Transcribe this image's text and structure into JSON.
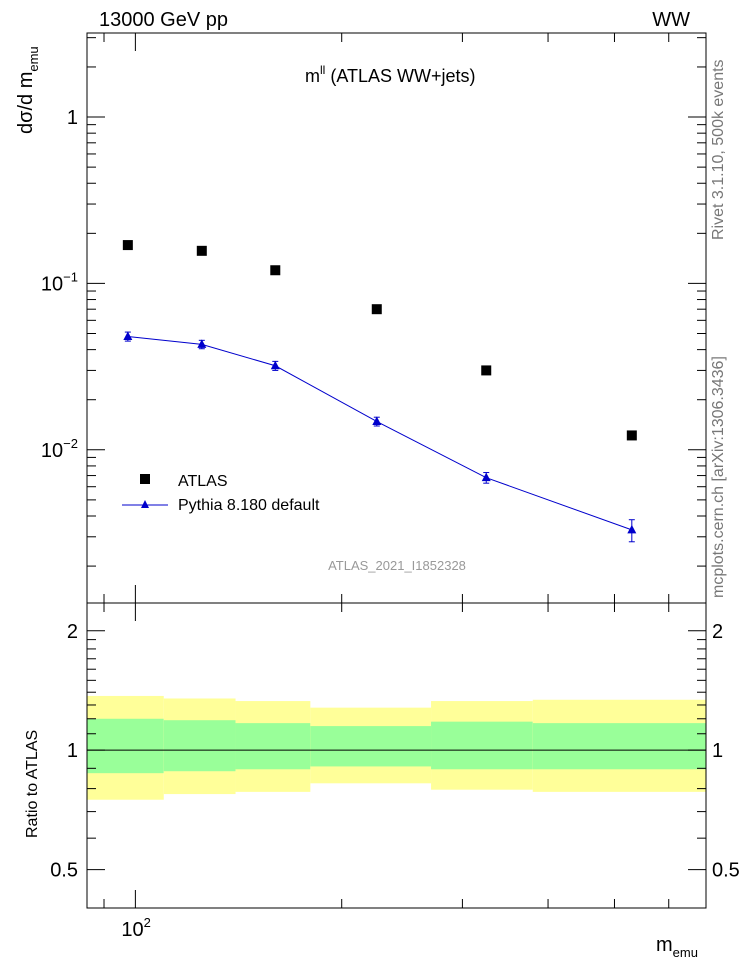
{
  "header": {
    "energy_label": "13000 GeV pp",
    "process_label": "WW"
  },
  "side_labels": {
    "rivet": "Rivet 3.1.10,  500k events",
    "mcplots": "mcplots.cern.ch [arXiv:1306.3436]"
  },
  "chart_data": {
    "type": "scatter",
    "title": "m^ll (ATLAS WW+jets)",
    "title_main": "m",
    "title_sup": "ll",
    "title_rest": " (ATLAS WW+jets)",
    "analysis_tag": "ATLAS_2021_I1852328",
    "ylabel_main": "dσ/d m",
    "ylabel_sub": "emu",
    "xlabel_main": "m",
    "xlabel_sub": "emu",
    "ratio_ylabel": "Ratio to ATLAS",
    "xscale": "log",
    "xlim": [
      85,
      680
    ],
    "ylim": [
      0.0012,
      3.2
    ],
    "ratio_ylim": [
      0.4,
      2.35
    ],
    "bin_edges": [
      85,
      110,
      140,
      180,
      270,
      380,
      680
    ],
    "main_y_ticks": [
      {
        "value": 0.01,
        "base": "10",
        "exp": "−2"
      },
      {
        "value": 0.1,
        "base": "10",
        "exp": "−1"
      },
      {
        "value": 1,
        "base": "1",
        "exp": ""
      }
    ],
    "x_ticks": [
      {
        "value": 100,
        "base": "10",
        "exp": "2"
      }
    ],
    "ratio_y_ticks": [
      {
        "value": 0.5,
        "label": "0.5"
      },
      {
        "value": 1,
        "label": "1"
      },
      {
        "value": 2,
        "label": "2"
      }
    ],
    "legend": [
      {
        "label": "ATLAS",
        "marker": "square",
        "color": "#000000"
      },
      {
        "label": "Pythia 8.180 default",
        "marker": "triangle",
        "color": "#0000cc"
      }
    ],
    "series": [
      {
        "name": "ATLAS",
        "x": [
          97.5,
          125,
          160,
          225,
          325,
          530
        ],
        "y": [
          0.17,
          0.157,
          0.12,
          0.07,
          0.03,
          0.0122
        ]
      },
      {
        "name": "Pythia 8.180 default",
        "x": [
          97.5,
          125,
          160,
          225,
          325,
          530
        ],
        "y": [
          0.048,
          0.043,
          0.032,
          0.0148,
          0.0068,
          0.0033
        ],
        "yerr": [
          0.003,
          0.0025,
          0.002,
          0.0009,
          0.0005,
          0.0005
        ]
      }
    ],
    "ratio_bands": {
      "yellow_color": "#ffff99",
      "green_color": "#99ff99",
      "yellow_low": [
        0.75,
        0.775,
        0.785,
        0.825,
        0.795,
        0.785
      ],
      "yellow_high": [
        1.37,
        1.35,
        1.33,
        1.28,
        1.33,
        1.34
      ],
      "green_low": [
        0.875,
        0.885,
        0.895,
        0.91,
        0.895,
        0.895
      ],
      "green_high": [
        1.2,
        1.19,
        1.17,
        1.15,
        1.18,
        1.17
      ]
    }
  }
}
